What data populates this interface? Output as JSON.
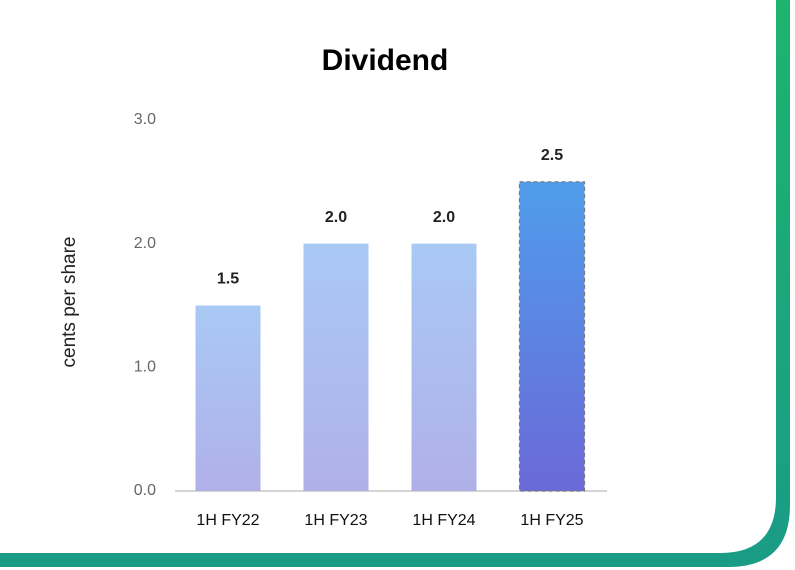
{
  "chart_data": {
    "type": "bar",
    "title": "Dividend",
    "y_label": "cents per share",
    "categories": [
      "1H FY22",
      "1H FY23",
      "1H FY24",
      "1H FY25"
    ],
    "values": [
      1.5,
      2,
      2,
      2.5
    ],
    "value_labels": [
      "1.5",
      "2.0",
      "2.0",
      "2.5"
    ],
    "colors": [
      [
        "#a9c9f5",
        "#b0b0e8"
      ],
      [
        "#a9c9f5",
        "#b0b0e8"
      ],
      [
        "#a9c9f5",
        "#b0b0e8"
      ],
      [
        "#4f9deb",
        "#6b69d8"
      ]
    ],
    "ylim": [
      0,
      3
    ],
    "yticks": [
      {
        "value": 0,
        "label": "0.0"
      },
      {
        "value": 1,
        "label": "1.0"
      },
      {
        "value": 2,
        "label": "2.0"
      },
      {
        "value": 3,
        "label": "3.0"
      }
    ],
    "grid": false
  }
}
